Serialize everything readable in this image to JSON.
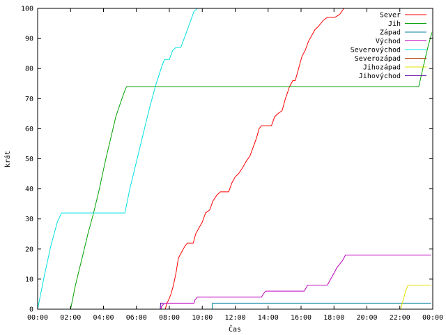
{
  "chart_data": {
    "type": "line",
    "title": "",
    "xlabel": "Čas",
    "ylabel": "krát",
    "xlim": [
      "00:00",
      "24:00"
    ],
    "ylim": [
      0,
      100
    ],
    "x_unit": "hours since 00:00",
    "grid": false,
    "legend_position": "top-right",
    "x_ticks": [
      {
        "v": 0,
        "label": "00:00"
      },
      {
        "v": 2,
        "label": "02:00"
      },
      {
        "v": 4,
        "label": "04:00"
      },
      {
        "v": 6,
        "label": "06:00"
      },
      {
        "v": 8,
        "label": "08:00"
      },
      {
        "v": 10,
        "label": "10:00"
      },
      {
        "v": 12,
        "label": "12:00"
      },
      {
        "v": 14,
        "label": "14:00"
      },
      {
        "v": 16,
        "label": "16:00"
      },
      {
        "v": 18,
        "label": "18:00"
      },
      {
        "v": 20,
        "label": "20:00"
      },
      {
        "v": 22,
        "label": "22:00"
      },
      {
        "v": 24,
        "label": "00:00"
      }
    ],
    "y_ticks": [
      0,
      10,
      20,
      30,
      40,
      50,
      60,
      70,
      80,
      90,
      100
    ],
    "series": [
      {
        "name": "Sever",
        "color": "#ff0000",
        "points": [
          [
            7.75,
            0
          ],
          [
            7.85,
            2
          ],
          [
            7.95,
            3
          ],
          [
            8.1,
            5
          ],
          [
            8.25,
            8
          ],
          [
            8.4,
            12
          ],
          [
            8.55,
            17
          ],
          [
            8.75,
            19
          ],
          [
            8.95,
            21
          ],
          [
            9.1,
            22
          ],
          [
            9.45,
            22
          ],
          [
            9.6,
            25
          ],
          [
            9.8,
            27
          ],
          [
            10.0,
            29
          ],
          [
            10.2,
            32
          ],
          [
            10.45,
            33
          ],
          [
            10.65,
            36
          ],
          [
            10.9,
            38
          ],
          [
            11.1,
            39
          ],
          [
            11.6,
            39
          ],
          [
            11.8,
            42
          ],
          [
            12.0,
            44
          ],
          [
            12.2,
            45
          ],
          [
            12.45,
            47
          ],
          [
            12.65,
            49
          ],
          [
            12.9,
            51
          ],
          [
            13.1,
            54
          ],
          [
            13.3,
            57
          ],
          [
            13.45,
            60
          ],
          [
            13.6,
            61
          ],
          [
            14.2,
            61
          ],
          [
            14.4,
            64
          ],
          [
            14.6,
            65
          ],
          [
            14.85,
            66
          ],
          [
            15.05,
            70
          ],
          [
            15.3,
            74
          ],
          [
            15.5,
            76
          ],
          [
            15.65,
            76
          ],
          [
            15.85,
            80
          ],
          [
            16.05,
            84
          ],
          [
            16.25,
            86
          ],
          [
            16.45,
            89
          ],
          [
            16.65,
            91
          ],
          [
            16.85,
            93
          ],
          [
            17.05,
            94
          ],
          [
            17.35,
            96
          ],
          [
            17.6,
            97
          ],
          [
            18.05,
            97
          ],
          [
            18.35,
            98
          ],
          [
            18.6,
            100
          ],
          [
            19.0,
            100
          ]
        ]
      },
      {
        "name": "Jih",
        "color": "#00a000",
        "points": [
          [
            2.0,
            0
          ],
          [
            2.3,
            8
          ],
          [
            2.7,
            17
          ],
          [
            3.05,
            25
          ],
          [
            3.4,
            32
          ],
          [
            3.75,
            40
          ],
          [
            4.1,
            49
          ],
          [
            4.45,
            57
          ],
          [
            4.75,
            64
          ],
          [
            5.0,
            68
          ],
          [
            5.25,
            72
          ],
          [
            5.4,
            74
          ],
          [
            23.15,
            74
          ],
          [
            23.4,
            80
          ],
          [
            23.7,
            87
          ],
          [
            23.95,
            92
          ]
        ]
      },
      {
        "name": "Západ",
        "color": "#0080a0",
        "points": [
          [
            10.6,
            0
          ],
          [
            10.62,
            2
          ],
          [
            23.9,
            2
          ]
        ]
      },
      {
        "name": "Východ",
        "color": "#c000c0",
        "points": [
          [
            7.5,
            0
          ],
          [
            7.52,
            1
          ],
          [
            7.72,
            2
          ],
          [
            9.5,
            2
          ],
          [
            9.55,
            3
          ],
          [
            9.7,
            4
          ],
          [
            13.6,
            4
          ],
          [
            13.7,
            5
          ],
          [
            13.85,
            6
          ],
          [
            16.2,
            6
          ],
          [
            16.4,
            8
          ],
          [
            17.6,
            8
          ],
          [
            17.8,
            10
          ],
          [
            18.0,
            12
          ],
          [
            18.2,
            14
          ],
          [
            18.5,
            16
          ],
          [
            18.7,
            18
          ],
          [
            23.9,
            18
          ]
        ]
      },
      {
        "name": "Severovýchod",
        "color": "#00e0e0",
        "points": [
          [
            0.0,
            0
          ],
          [
            0.4,
            11
          ],
          [
            0.8,
            21
          ],
          [
            1.2,
            29
          ],
          [
            1.45,
            32
          ],
          [
            5.3,
            32
          ],
          [
            5.6,
            40
          ],
          [
            6.0,
            49
          ],
          [
            6.4,
            58
          ],
          [
            6.8,
            67
          ],
          [
            7.2,
            75
          ],
          [
            7.5,
            80
          ],
          [
            7.7,
            83
          ],
          [
            8.0,
            83
          ],
          [
            8.2,
            86
          ],
          [
            8.4,
            87
          ],
          [
            8.7,
            87
          ],
          [
            8.9,
            90
          ],
          [
            9.1,
            93
          ],
          [
            9.3,
            96
          ],
          [
            9.5,
            99
          ],
          [
            9.7,
            100
          ],
          [
            9.9,
            100
          ]
        ]
      },
      {
        "name": "Severozápad",
        "color": "#b04000",
        "points": []
      },
      {
        "name": "Jihozápad",
        "color": "#e0e000",
        "points": [
          [
            22.05,
            0
          ],
          [
            22.2,
            3
          ],
          [
            22.35,
            6
          ],
          [
            22.5,
            8
          ],
          [
            23.9,
            8
          ]
        ]
      },
      {
        "name": "Jihovýchod",
        "color": "#6000a0",
        "points": [
          [
            7.45,
            0
          ],
          [
            7.47,
            2
          ],
          [
            7.65,
            2
          ]
        ]
      }
    ]
  }
}
